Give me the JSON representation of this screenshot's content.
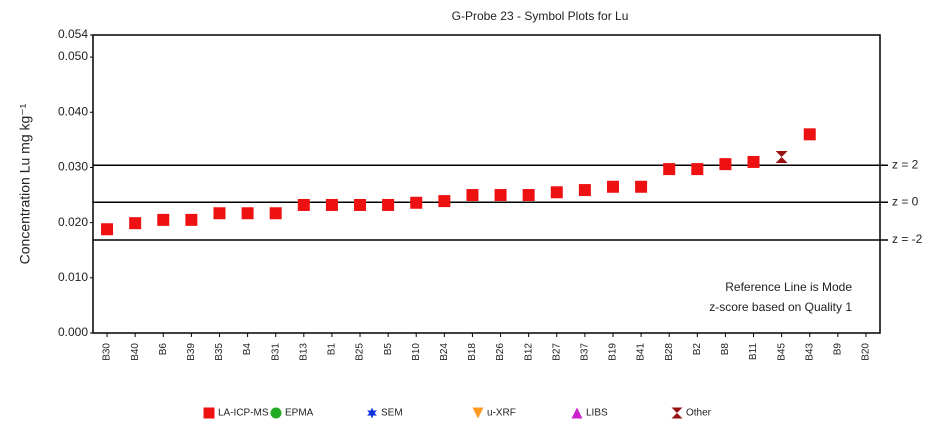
{
  "chart_data": {
    "type": "symbol",
    "title": "G-Probe 23 - Symbol Plots for Lu",
    "y_label": "Concentration Lu mg kg⁻¹",
    "categories": [
      "B30",
      "B40",
      "B6",
      "B39",
      "B35",
      "B4",
      "B31",
      "B13",
      "B1",
      "B25",
      "B5",
      "B10",
      "B24",
      "B18",
      "B26",
      "B12",
      "B27",
      "B37",
      "B19",
      "B41",
      "B28",
      "B2",
      "B8",
      "B11",
      "B45",
      "B43",
      "B9",
      "B20"
    ],
    "series": [
      {
        "name": "LA-ICP-MS",
        "color": "#ee1111",
        "marker": "square",
        "values": [
          0.0188,
          0.0199,
          0.0205,
          0.0205,
          0.0217,
          0.0217,
          0.0217,
          0.0232,
          0.0232,
          0.0232,
          0.0232,
          0.0236,
          0.0239,
          0.025,
          0.025,
          0.025,
          0.0255,
          0.0259,
          0.0265,
          0.0265,
          0.0297,
          0.0297,
          0.0306,
          0.031,
          null,
          0.036,
          null,
          null
        ]
      },
      {
        "name": "EPMA",
        "color": "#22aa22",
        "marker": "circle",
        "values": [
          null,
          null,
          null,
          null,
          null,
          null,
          null,
          null,
          null,
          null,
          null,
          null,
          null,
          null,
          null,
          null,
          null,
          null,
          null,
          null,
          null,
          null,
          null,
          null,
          null,
          null,
          null,
          null
        ]
      },
      {
        "name": "SEM",
        "color": "#1133dd",
        "marker": "star",
        "values": [
          null,
          null,
          null,
          null,
          null,
          null,
          null,
          null,
          null,
          null,
          null,
          null,
          null,
          null,
          null,
          null,
          null,
          null,
          null,
          null,
          null,
          null,
          null,
          null,
          null,
          null,
          null,
          null
        ]
      },
      {
        "name": "u-XRF",
        "color": "#ff9922",
        "marker": "triangle-down",
        "values": [
          null,
          null,
          null,
          null,
          null,
          null,
          null,
          null,
          null,
          null,
          null,
          null,
          null,
          null,
          null,
          null,
          null,
          null,
          null,
          null,
          null,
          null,
          null,
          null,
          null,
          null,
          null,
          null
        ]
      },
      {
        "name": "LIBS",
        "color": "#cc22cc",
        "marker": "triangle-up",
        "values": [
          null,
          null,
          null,
          null,
          null,
          null,
          null,
          null,
          null,
          null,
          null,
          null,
          null,
          null,
          null,
          null,
          null,
          null,
          null,
          null,
          null,
          null,
          null,
          null,
          null,
          null,
          null,
          null
        ]
      },
      {
        "name": "Other",
        "color": "#991111",
        "marker": "hourglass",
        "values": [
          null,
          null,
          null,
          null,
          null,
          null,
          null,
          null,
          null,
          null,
          null,
          null,
          null,
          null,
          null,
          null,
          null,
          null,
          null,
          null,
          null,
          null,
          null,
          null,
          0.0319,
          null,
          null,
          null
        ]
      }
    ],
    "ylim": [
      0,
      0.054
    ],
    "yticks": [
      {
        "value": 0,
        "label": "0.000"
      },
      {
        "value": 0.01,
        "label": "0.010"
      },
      {
        "value": 0.02,
        "label": "0.020"
      },
      {
        "value": 0.03,
        "label": "0.030"
      },
      {
        "value": 0.04,
        "label": "0.040"
      },
      {
        "value": 0.05,
        "label": "0.050"
      },
      0.054
    ],
    "reference_lines": [
      {
        "label": "z = 2",
        "value": 0.0304
      },
      {
        "label": "z = 0",
        "value": 0.0237
      },
      {
        "label": "z = -2",
        "value": 0.01685
      }
    ],
    "annotations": [
      "Reference Line is Mode",
      "z-score based on Quality 1"
    ],
    "legend": "bottom"
  }
}
